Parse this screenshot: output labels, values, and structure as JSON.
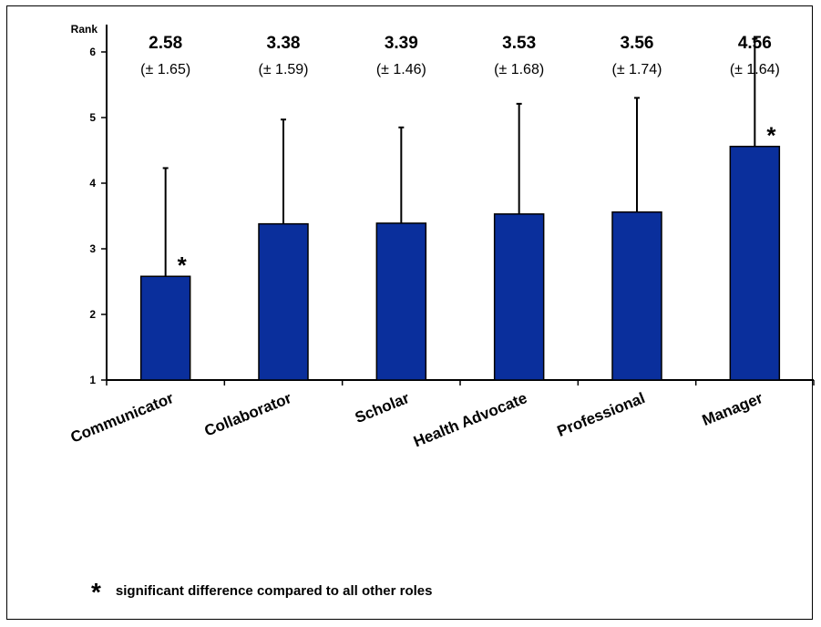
{
  "chart_data": {
    "type": "bar",
    "ylabel": "Rank",
    "ylim": [
      1,
      6
    ],
    "yticks": [
      1,
      2,
      3,
      4,
      5,
      6
    ],
    "categories": [
      "Communicator",
      "Collaborator",
      "Scholar",
      "Health Advocate",
      "Professional",
      "Manager"
    ],
    "values": [
      2.58,
      3.38,
      3.39,
      3.53,
      3.56,
      4.56
    ],
    "errors": [
      1.65,
      1.59,
      1.46,
      1.68,
      1.74,
      1.64
    ],
    "mean_labels": [
      "2.58",
      "3.38",
      "3.39",
      "3.53",
      "3.56",
      "4.56"
    ],
    "sd_labels": [
      "(± 1.65)",
      "(± 1.59)",
      "(± 1.46)",
      "(± 1.68)",
      "(± 1.74)",
      "(± 1.64)"
    ],
    "significant": [
      true,
      false,
      false,
      false,
      false,
      true
    ],
    "significance_marker": "*",
    "bar_color": "#0a2f9c",
    "grid": false
  },
  "footnote": {
    "symbol": "*",
    "text": "significant difference compared to all other roles"
  }
}
